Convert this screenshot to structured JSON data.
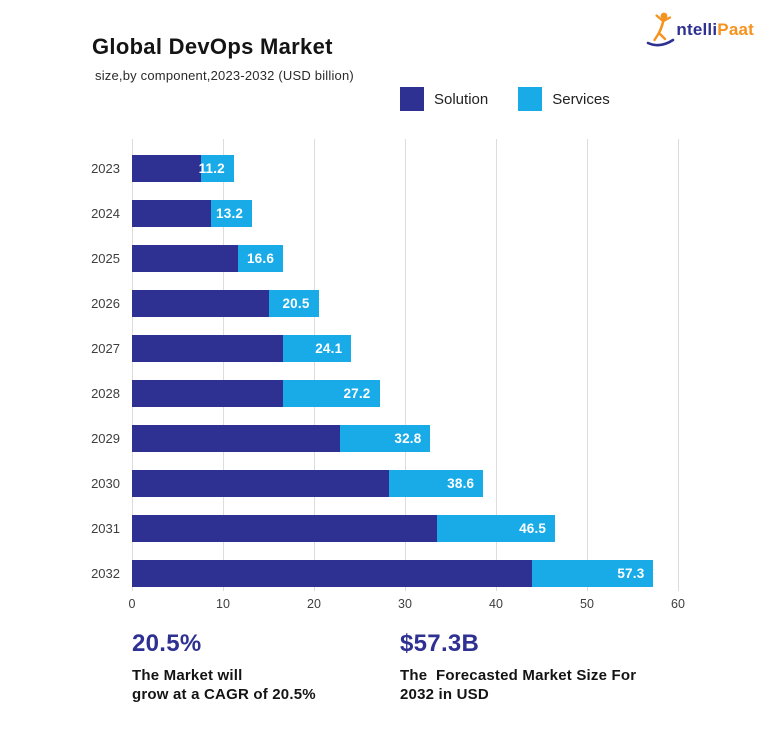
{
  "header": {
    "title": "Global DevOps Market",
    "subtitle": "size,by component,2023-2032 (USD billion)"
  },
  "logo": {
    "icon": "leaping-person-icon",
    "text_primary": "ntelli",
    "text_secondary": "Paat",
    "color_primary": "#2E3192",
    "color_secondary": "#F6921E"
  },
  "legend": [
    {
      "label": "Solution",
      "color": "#2E3192"
    },
    {
      "label": "Services",
      "color": "#18ABE8"
    }
  ],
  "chart_data": {
    "type": "bar",
    "orientation": "horizontal",
    "stacked": true,
    "title": "Global DevOps Market",
    "subtitle": "size,by component,2023-2032 (USD billion)",
    "xlabel": "",
    "ylabel": "",
    "xlim": [
      0,
      60
    ],
    "x_ticks": [
      0,
      10,
      20,
      30,
      40,
      50,
      60
    ],
    "grid": "vertical",
    "legend_position": "top-right",
    "categories": [
      "2023",
      "2024",
      "2025",
      "2026",
      "2027",
      "2028",
      "2029",
      "2030",
      "2031",
      "2032"
    ],
    "series": [
      {
        "name": "Solution",
        "color": "#2E3192",
        "values": [
          7.6,
          8.7,
          11.7,
          15.1,
          16.6,
          16.6,
          22.9,
          28.2,
          33.5,
          44.0
        ]
      },
      {
        "name": "Services",
        "color": "#18ABE8",
        "values": [
          3.6,
          4.5,
          4.9,
          5.4,
          7.5,
          10.6,
          9.9,
          10.4,
          13.0,
          13.3
        ]
      }
    ],
    "totals": [
      11.2,
      13.2,
      16.6,
      20.5,
      24.1,
      27.2,
      32.8,
      38.6,
      46.5,
      57.3
    ],
    "total_labels": [
      "11.2",
      "13.2",
      "16.6",
      "20.5",
      "24.1",
      "27.2",
      "32.8",
      "38.6",
      "46.5",
      "57.3"
    ]
  },
  "annotations": [
    {
      "value": "20.5%",
      "text": "The Market will\ngrow at a CAGR of 20.5%"
    },
    {
      "value": "$57.3B",
      "text": "The  Forecasted Market Size For\n2032 in USD"
    }
  ],
  "colors": {
    "solution": "#2E3192",
    "services": "#18ABE8",
    "gridline": "#dcdcdc",
    "annotation_value": "#2E3192",
    "bar_value_text": "#ffffff"
  }
}
